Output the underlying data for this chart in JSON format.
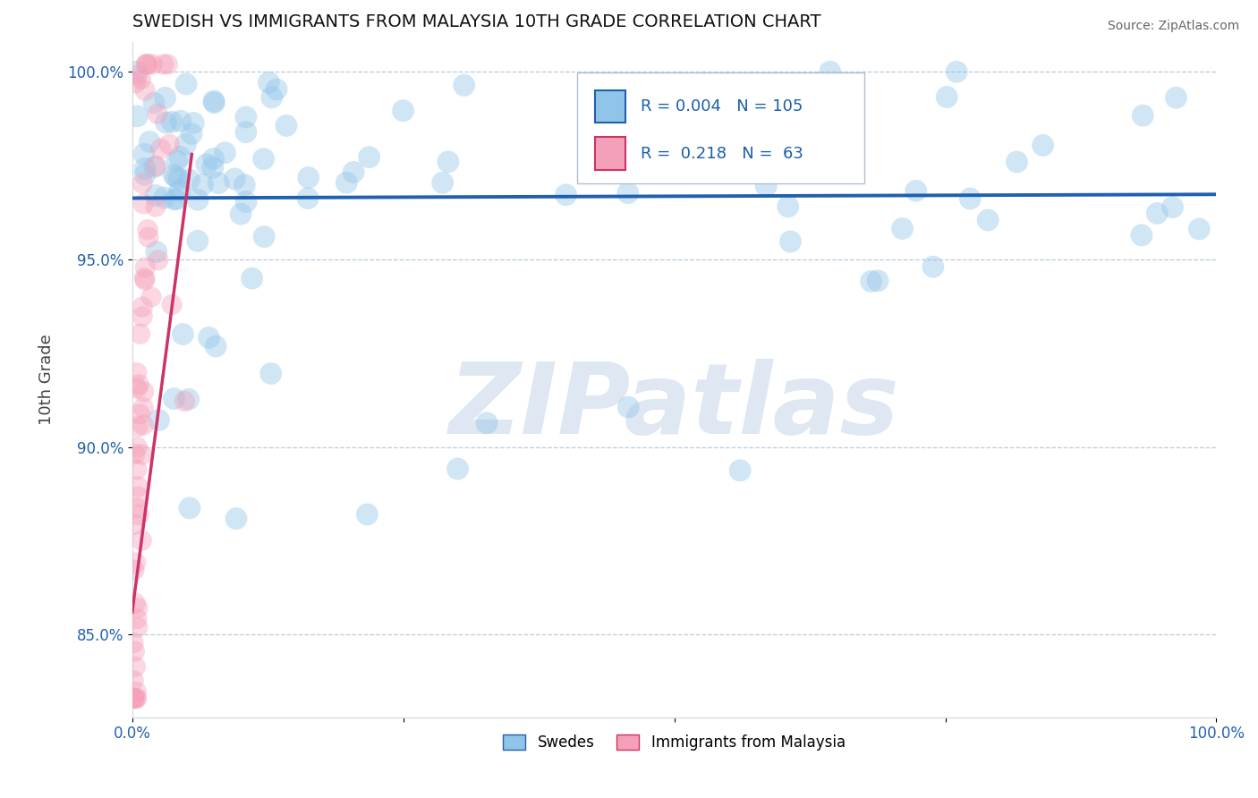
{
  "title": "SWEDISH VS IMMIGRANTS FROM MALAYSIA 10TH GRADE CORRELATION CHART",
  "source": "Source: ZipAtlas.com",
  "ylabel": "10th Grade",
  "xlim": [
    0.0,
    1.0
  ],
  "ylim": [
    0.828,
    1.008
  ],
  "yticks": [
    0.85,
    0.9,
    0.95,
    1.0
  ],
  "ytick_labels": [
    "85.0%",
    "90.0%",
    "95.0%",
    "100.0%"
  ],
  "xticks": [
    0.0,
    0.25,
    0.5,
    0.75,
    1.0
  ],
  "xtick_labels": [
    "0.0%",
    "",
    "",
    "",
    "100.0%"
  ],
  "blue_R": 0.004,
  "blue_N": 105,
  "pink_R": 0.218,
  "pink_N": 63,
  "blue_color": "#90c4e8",
  "pink_color": "#f4a0b8",
  "blue_trend_color": "#2060b0",
  "pink_trend_color": "#cc3366",
  "legend_blue_label": "Swedes",
  "legend_pink_label": "Immigrants from Malaysia",
  "watermark": "ZIPatlas",
  "watermark_blue": "#c8d8ea",
  "background_color": "#ffffff",
  "seed": 99
}
